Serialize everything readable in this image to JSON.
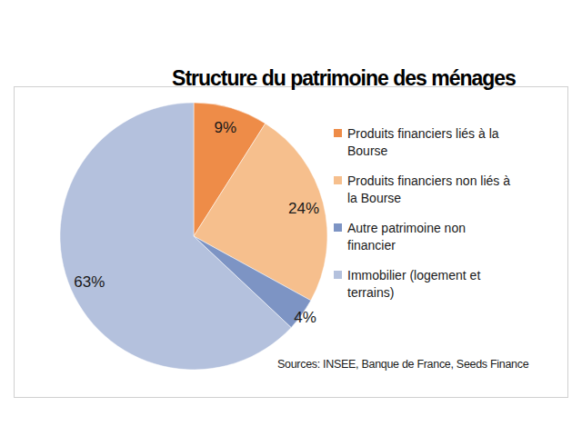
{
  "chart_data": {
    "type": "pie",
    "title": "Structure du patrimoine des ménages",
    "categories": [
      "Produits financiers liés à la Bourse",
      "Produits financiers non liés à la Bourse",
      "Autre patrimoine non financier",
      "Immobilier (logement et terrains)"
    ],
    "values": [
      9,
      24,
      4,
      63
    ],
    "value_labels": [
      "9%",
      "24%",
      "4%",
      "63%"
    ],
    "colors": [
      "#ee8c48",
      "#f6bf8d",
      "#7d94c4",
      "#b4c1dd"
    ],
    "data_labels": true,
    "legend": "right",
    "source": "Sources: INSEE, Banque de France, Seeds Finance"
  }
}
